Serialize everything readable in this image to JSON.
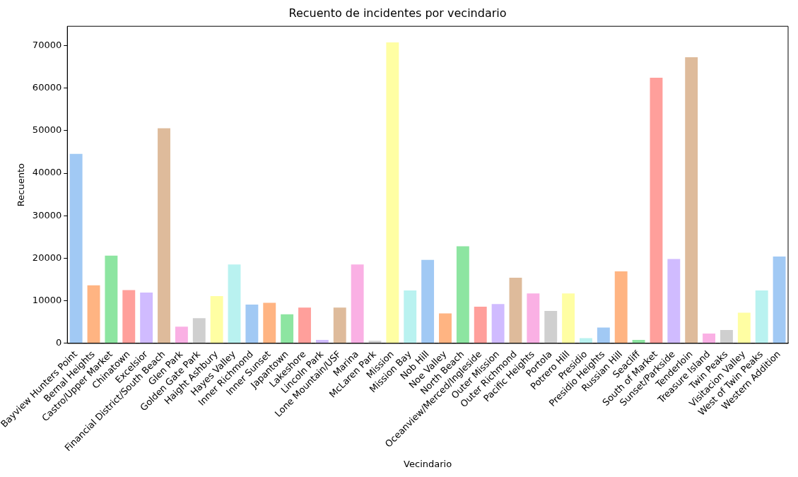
{
  "chart_data": {
    "type": "bar",
    "title": "Recuento de incidentes por vecindario",
    "xlabel": "Vecindario",
    "ylabel": "Recuento",
    "categories": [
      "Bayview Hunters Point",
      "Bernal Heights",
      "Castro/Upper Market",
      "Chinatown",
      "Excelsior",
      "Financial District/South Beach",
      "Glen Park",
      "Golden Gate Park",
      "Haight Ashbury",
      "Hayes Valley",
      "Inner Richmond",
      "Inner Sunset",
      "Japantown",
      "Lakeshore",
      "Lincoln Park",
      "Lone Mountain/USF",
      "Marina",
      "McLaren Park",
      "Mission",
      "Mission Bay",
      "Nob Hill",
      "Noe Valley",
      "North Beach",
      "Oceanview/Merced/Ingleside",
      "Outer Mission",
      "Outer Richmond",
      "Pacific Heights",
      "Portola",
      "Potrero Hill",
      "Presidio",
      "Presidio Heights",
      "Russian Hill",
      "Seacliff",
      "South of Market",
      "Sunset/Parkside",
      "Tenderloin",
      "Treasure Island",
      "Twin Peaks",
      "Visitacion Valley",
      "West of Twin Peaks",
      "Western Addition"
    ],
    "values": [
      44700,
      13800,
      20800,
      12700,
      12100,
      50700,
      4100,
      6100,
      11300,
      18700,
      9300,
      9700,
      7000,
      8600,
      1000,
      8600,
      18700,
      800,
      70900,
      12600,
      19800,
      7200,
      23000,
      8800,
      9400,
      15600,
      11900,
      7800,
      11900,
      1400,
      3900,
      17100,
      1000,
      62600,
      20000,
      67400,
      2500,
      3300,
      7400,
      12600,
      20600
    ],
    "colors": [
      "#a1c9f4",
      "#ffb482",
      "#8de5a1",
      "#ff9f9b",
      "#d0bbff",
      "#debb9b",
      "#fab0e4",
      "#cfcfcf",
      "#fffea3",
      "#b9f2f0",
      "#a1c9f4",
      "#ffb482",
      "#8de5a1",
      "#ff9f9b",
      "#d0bbff",
      "#debb9b",
      "#fab0e4",
      "#cfcfcf",
      "#fffea3",
      "#b9f2f0",
      "#a1c9f4",
      "#ffb482",
      "#8de5a1",
      "#ff9f9b",
      "#d0bbff",
      "#debb9b",
      "#fab0e4",
      "#cfcfcf",
      "#fffea3",
      "#b9f2f0",
      "#a1c9f4",
      "#ffb482",
      "#8de5a1",
      "#ff9f9b",
      "#d0bbff",
      "#debb9b",
      "#fab0e4",
      "#cfcfcf",
      "#fffea3",
      "#b9f2f0",
      "#a1c9f4"
    ],
    "ylim": [
      0,
      74500
    ],
    "yticks": [
      0,
      10000,
      20000,
      30000,
      40000,
      50000,
      60000,
      70000
    ],
    "grid": false,
    "legend": false
  }
}
